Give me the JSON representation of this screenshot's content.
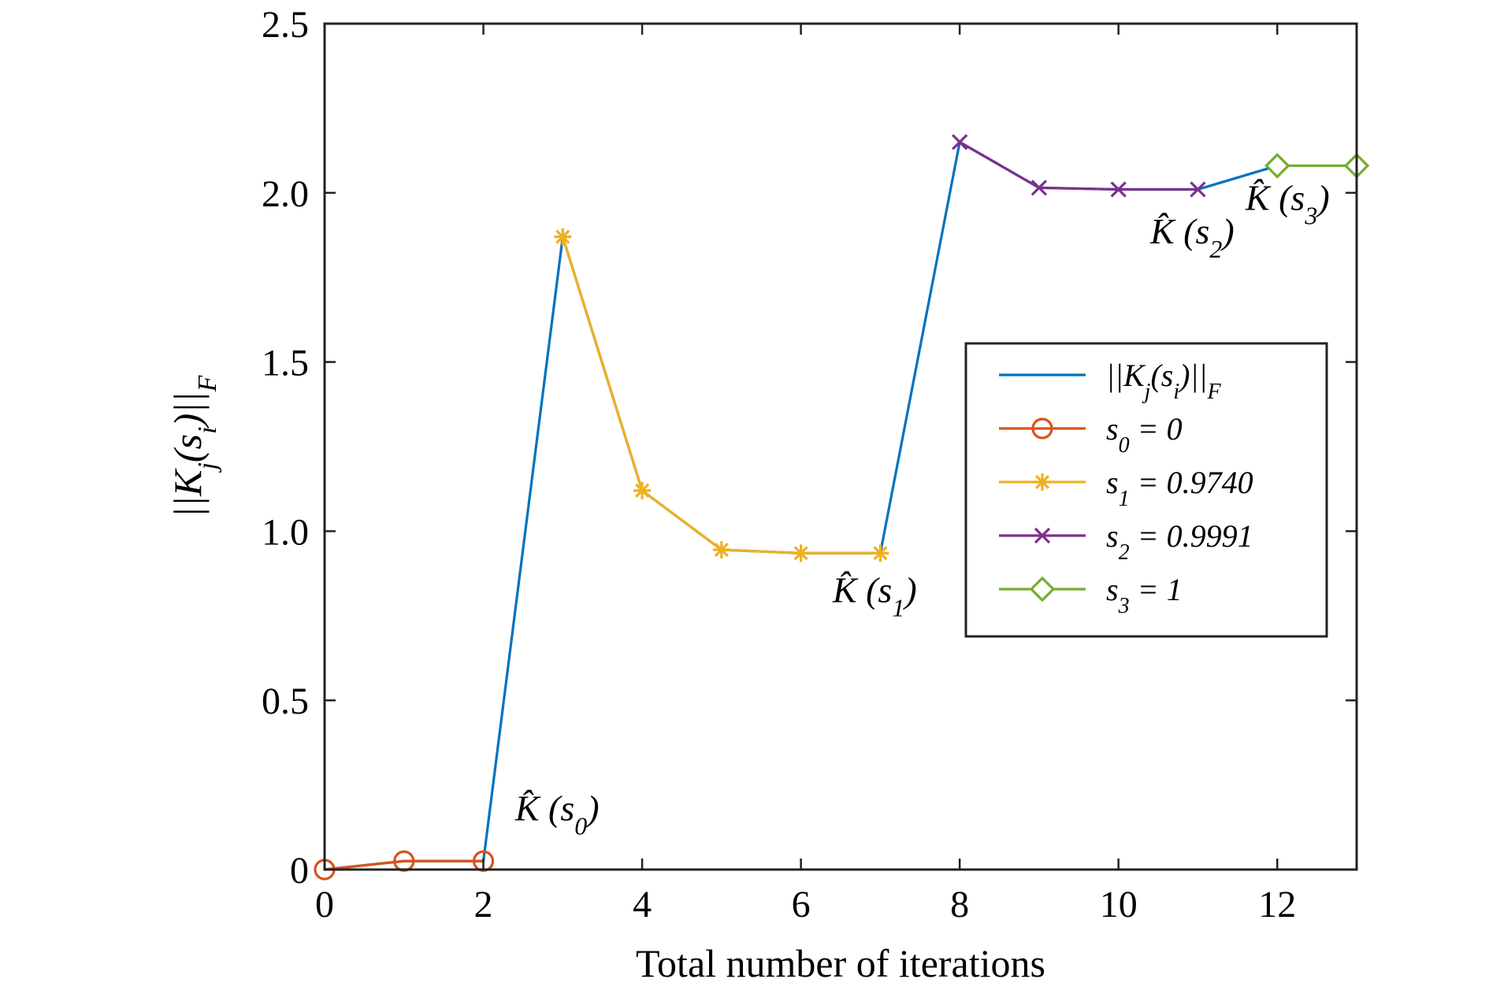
{
  "chart_data": {
    "type": "line",
    "xlabel": "Total number of iterations",
    "ylabel": "||K_j(s_i)||_F",
    "xlim": [
      0,
      13
    ],
    "ylim": [
      0,
      2.5
    ],
    "x_ticks": [
      0,
      2,
      4,
      6,
      8,
      10,
      12
    ],
    "x_tick_labels": [
      "0",
      "2",
      "4",
      "6",
      "8",
      "10",
      "12"
    ],
    "y_ticks": [
      0,
      0.5,
      1.0,
      1.5,
      2.0,
      2.5
    ],
    "y_tick_labels": [
      "0",
      "0.5",
      "1.0",
      "1.5",
      "2.0",
      "2.5"
    ],
    "grid": false,
    "legend_position": "right-middle",
    "series": [
      {
        "legend": "||K_j(s_i)||_F",
        "color": "#0072BD",
        "marker": "none",
        "x": [
          0,
          1,
          2,
          3,
          4,
          5,
          6,
          7,
          8,
          9,
          10,
          11,
          12,
          13
        ],
        "y": [
          0,
          0.025,
          0.025,
          1.87,
          1.12,
          0.945,
          0.935,
          0.935,
          2.15,
          2.015,
          2.01,
          2.01,
          2.08,
          2.08
        ]
      },
      {
        "legend": "s_0 = 0",
        "color": "#D95319",
        "marker": "circle",
        "x": [
          0,
          1,
          2
        ],
        "y": [
          0,
          0.025,
          0.025
        ]
      },
      {
        "legend": "s_1 = 0.9740",
        "color": "#EDB120",
        "marker": "asterisk",
        "x": [
          3,
          4,
          5,
          6,
          7
        ],
        "y": [
          1.87,
          1.12,
          0.945,
          0.935,
          0.935
        ]
      },
      {
        "legend": "s_2 = 0.9991",
        "color": "#7E2F8E",
        "marker": "cross",
        "x": [
          8,
          9,
          10,
          11
        ],
        "y": [
          2.15,
          2.015,
          2.01,
          2.01
        ]
      },
      {
        "legend": "s_3 = 1",
        "color": "#77AC30",
        "marker": "diamond",
        "x": [
          12,
          13
        ],
        "y": [
          2.08,
          2.08
        ]
      }
    ],
    "annotations": [
      {
        "text": "K̂ (s_0)",
        "x": 2.4,
        "y": 0.145
      },
      {
        "text": "K̂ (s_1)",
        "x": 6.4,
        "y": 0.79
      },
      {
        "text": "K̂ (s_2)",
        "x": 10.4,
        "y": 1.85
      },
      {
        "text": "K̂ (s_3)",
        "x": 11.6,
        "y": 1.95
      }
    ]
  }
}
